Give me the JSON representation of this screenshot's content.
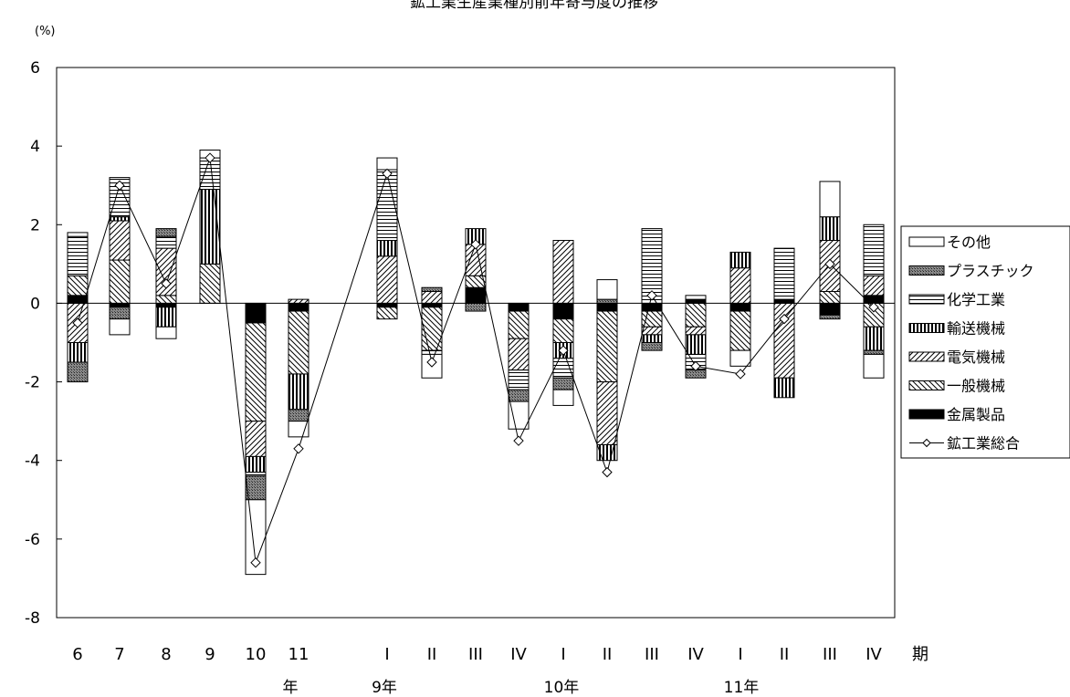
{
  "chart_data": {
    "type": "bar",
    "stacked": true,
    "title": "鉱工業生産業種別前年寄与度の推移",
    "ylabel": "(%)",
    "xlabel": "期",
    "ylim": [
      -8,
      6
    ],
    "y_ticks": [
      "6",
      "4",
      "2",
      "0",
      "-2",
      "-4",
      "-6",
      "-8"
    ],
    "categories": [
      "6",
      "7",
      "8",
      "9",
      "10",
      "11",
      "I",
      "II",
      "III",
      "IV",
      "I",
      "II",
      "III",
      "IV",
      "I",
      "II",
      "III",
      "IV"
    ],
    "year_labels": [
      "年",
      "9年",
      "10年",
      "11年"
    ],
    "period_label": "期",
    "grid": false,
    "legend_position": "right",
    "series": [
      {
        "name": "金属製品",
        "values": [
          0.2,
          -0.1,
          -0.1,
          0.0,
          -0.5,
          -0.2,
          -0.1,
          -0.1,
          0.4,
          -0.2,
          -0.4,
          -0.2,
          -0.2,
          0.1,
          -0.2,
          0.1,
          -0.3,
          0.2
        ]
      },
      {
        "name": "一般機械",
        "values": [
          0.5,
          1.1,
          0.2,
          1.0,
          -2.5,
          -1.6,
          -0.3,
          -1.1,
          0.3,
          -0.7,
          -0.6,
          -1.8,
          -0.4,
          -0.6,
          -1.0,
          0.0,
          0.3,
          -0.6
        ]
      },
      {
        "name": "電気機械",
        "values": [
          -1.0,
          1.0,
          1.2,
          0.0,
          -0.9,
          0.1,
          1.2,
          0.3,
          0.8,
          -0.8,
          1.6,
          -1.6,
          -0.2,
          -0.2,
          0.9,
          -1.9,
          1.3,
          0.5
        ]
      },
      {
        "name": "輸送機械",
        "values": [
          -0.5,
          0.1,
          -0.5,
          1.9,
          -0.4,
          -0.9,
          0.4,
          0.0,
          0.4,
          0.0,
          -0.4,
          -0.4,
          -0.2,
          -0.5,
          0.4,
          -0.5,
          0.6,
          -0.6
        ]
      },
      {
        "name": "化学工業",
        "values": [
          1.0,
          1.0,
          0.3,
          0.8,
          -0.1,
          0.0,
          1.8,
          -0.1,
          0.0,
          -0.5,
          -0.5,
          0.0,
          1.9,
          -0.4,
          0.0,
          1.3,
          0.0,
          1.3
        ]
      },
      {
        "name": "プラスチック",
        "values": [
          -0.5,
          -0.3,
          0.2,
          0.0,
          -0.6,
          -0.3,
          0.0,
          0.1,
          -0.2,
          -0.3,
          -0.3,
          0.1,
          -0.2,
          -0.2,
          0.0,
          0.0,
          -0.1,
          -0.1
        ]
      },
      {
        "name": "その他",
        "values": [
          0.1,
          -0.4,
          -0.3,
          0.2,
          -1.9,
          -0.4,
          0.3,
          -0.6,
          0.0,
          -0.7,
          -0.4,
          0.5,
          0.0,
          0.1,
          -0.4,
          0.0,
          0.9,
          -0.6
        ]
      }
    ],
    "line_series": {
      "name": "鉱工業総合",
      "values": [
        -0.5,
        3.0,
        0.5,
        3.7,
        -6.6,
        -3.7,
        3.3,
        -1.5,
        1.5,
        -3.5,
        -1.2,
        -4.3,
        0.2,
        -1.6,
        -1.8,
        -0.4,
        1.0,
        -0.1
      ]
    },
    "legend": [
      "その他",
      "プラスチック",
      "化学工業",
      "輸送機械",
      "電気機械",
      "一般機械",
      "金属製品",
      "鉱工業総合"
    ]
  },
  "legend_order": [
    "その他",
    "プラスチック",
    "化学工業",
    "輸送機械",
    "電気機械",
    "一般機械",
    "金属製品",
    "鉱工業総合"
  ],
  "styles": {
    "金属製品": "solid",
    "一般機械": "diag-back",
    "電気機械": "diag-fwd",
    "輸送機械": "vert",
    "化学工業": "horiz",
    "プラスチック": "cross",
    "その他": "empty"
  }
}
